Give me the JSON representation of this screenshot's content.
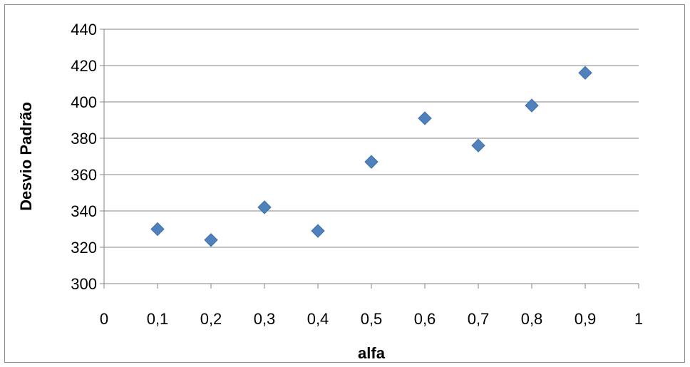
{
  "chart_data": {
    "type": "scatter",
    "title": "",
    "xlabel": "alfa",
    "ylabel": "Desvio Padrão",
    "xlim": [
      0,
      1
    ],
    "ylim": [
      300,
      440
    ],
    "x_ticks": [
      0,
      0.1,
      0.2,
      0.3,
      0.4,
      0.5,
      0.6,
      0.7,
      0.8,
      0.9,
      1
    ],
    "x_tick_labels": [
      "0",
      "0,1",
      "0,2",
      "0,3",
      "0,4",
      "0,5",
      "0,6",
      "0,7",
      "0,8",
      "0,9",
      "1"
    ],
    "y_ticks": [
      300,
      320,
      340,
      360,
      380,
      400,
      420,
      440
    ],
    "y_tick_labels": [
      "300",
      "320",
      "340",
      "360",
      "380",
      "400",
      "420",
      "440"
    ],
    "grid": "horizontal",
    "legend": "none",
    "marker": "diamond",
    "series": [
      {
        "color": "#4f81bd",
        "x": [
          0.1,
          0.2,
          0.3,
          0.4,
          0.5,
          0.6,
          0.7,
          0.8,
          0.9
        ],
        "y": [
          330,
          324,
          342,
          329,
          367,
          391,
          376,
          398,
          416
        ]
      }
    ]
  }
}
